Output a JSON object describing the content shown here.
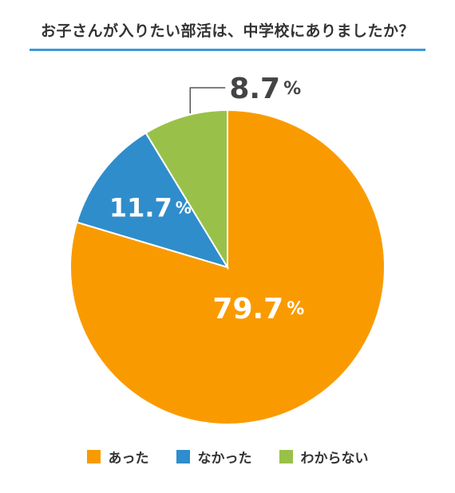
{
  "title": "お子さんが入りたい部活は、中学校にありましたか？",
  "colors": {
    "accent_rule": "#3a9ad9",
    "text": "#333333"
  },
  "chart_data": {
    "type": "pie",
    "title": "お子さんが入りたい部活は、中学校にありましたか？",
    "slices": [
      {
        "label": "あった",
        "value": 79.7,
        "value_label": "79.7",
        "color": "#f99b00",
        "label_inside": true
      },
      {
        "label": "なかった",
        "value": 11.7,
        "value_label": "11.7",
        "color": "#2f8dcc",
        "label_inside": true
      },
      {
        "label": "わからない",
        "value": 8.7,
        "value_label": "8.7",
        "color": "#99c149",
        "label_inside": false
      }
    ],
    "percent_sign": "%",
    "start": "12 o'clock",
    "direction": "clockwise",
    "legend_position": "bottom"
  }
}
